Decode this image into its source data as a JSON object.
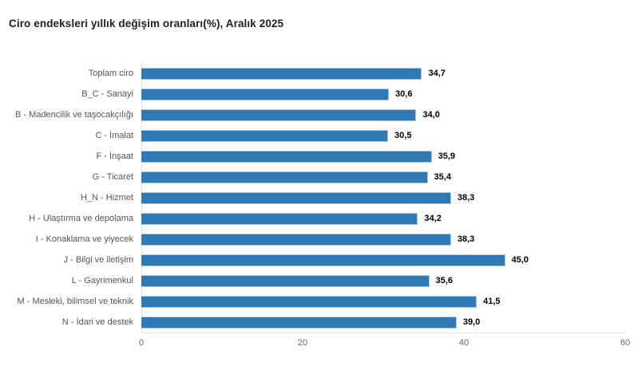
{
  "header": {
    "title": "Ciro endeksleri yıllık değişim oranları(%), Aralık 2025"
  },
  "colors": {
    "bar_fill": "#2f79b5",
    "bar_border": "#a9c9e5",
    "axis_line": "#e6e6e6",
    "category_label": "#555555",
    "value_label": "#000000",
    "tick_label": "#666666",
    "title_text": "#1f1f1f",
    "background": "#ffffff"
  },
  "chart_data": {
    "type": "bar",
    "orientation": "horizontal",
    "title": "Ciro endeksleri yıllık değişim oranları(%), Aralık 2025",
    "categories": [
      "Toplam ciro",
      "B_C - Sanayi",
      "B - Madencilik ve taşocakçılığı",
      "C - İmalat",
      "F - İnşaat",
      "G - Ticaret",
      "H_N - Hizmet",
      "H - Ulaştırma ve depolama",
      "I - Konaklama ve yiyecek",
      "J - Bilgi ve iletişim",
      "L - Gayrimenkul",
      "M - Mesleki, bilimsel ve teknik",
      "N - İdari ve destek"
    ],
    "values": [
      34.7,
      30.6,
      34.0,
      30.5,
      35.9,
      35.4,
      38.3,
      34.2,
      38.3,
      45.0,
      35.6,
      41.5,
      39.0
    ],
    "value_labels": [
      "34,7",
      "30,6",
      "34,0",
      "30,5",
      "35,9",
      "35,4",
      "38,3",
      "34,2",
      "38,3",
      "45,0",
      "35,6",
      "41,5",
      "39,0"
    ],
    "xlabel": "",
    "ylabel": "",
    "xlim": [
      0,
      60
    ],
    "xticks": [
      0,
      20,
      40,
      60
    ],
    "xtick_labels": [
      "0",
      "20",
      "40",
      "60"
    ],
    "grid": false,
    "legend": false
  }
}
